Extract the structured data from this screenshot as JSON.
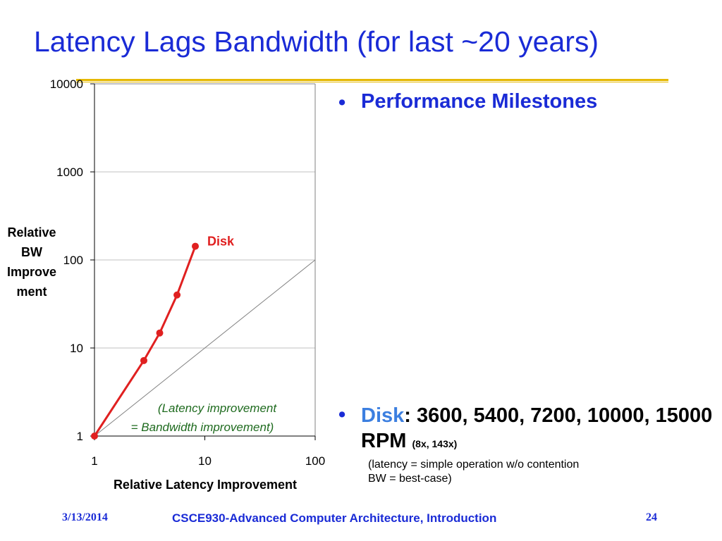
{
  "slide": {
    "title": "Latency Lags Bandwidth (for last ~20 years)"
  },
  "colors": {
    "title": "#1a2bd6",
    "rule": "#e5b800",
    "disk_series": "#e02020",
    "reference_line": "#808080",
    "annotation": "#1f6b1f",
    "disk_word": "#3c7fe0"
  },
  "chart_data": {
    "type": "line",
    "xscale": "log",
    "yscale": "log",
    "xlim": [
      1,
      100
    ],
    "ylim": [
      1,
      10000
    ],
    "xticks": [
      "1",
      "10",
      "100"
    ],
    "yticks": [
      "1",
      "10",
      "100",
      "1000",
      "10000"
    ],
    "xlabel": "Relative Latency Improvement",
    "ylabel": "Relative BW Improve ment",
    "ylabel_lines": [
      "Relative",
      "BW",
      "Improve",
      "ment"
    ],
    "grid": true,
    "series": [
      {
        "name": "Disk",
        "x": [
          1,
          2.8,
          3.9,
          5.6,
          8.2
        ],
        "y": [
          1,
          7.2,
          14.8,
          40,
          143
        ]
      }
    ],
    "reference_line": {
      "x": [
        1,
        100
      ],
      "y": [
        1,
        100
      ],
      "label": [
        "(Latency improvement",
        "= Bandwidth improvement)"
      ]
    }
  },
  "bullets": {
    "heading": "Performance Milestones",
    "disk_label": "Disk",
    "disk_colon": ":",
    "disk_values": " 3600, 5400, 7200, 10000, 15000 RPM ",
    "disk_ratio": "(8x, 143x)",
    "note_line1": "(latency = simple operation w/o contention",
    "note_line2": "BW = best-case)"
  },
  "footer": {
    "date": "3/13/2014",
    "course": "CSCE930-Advanced Computer Architecture, Introduction",
    "page": "24"
  }
}
